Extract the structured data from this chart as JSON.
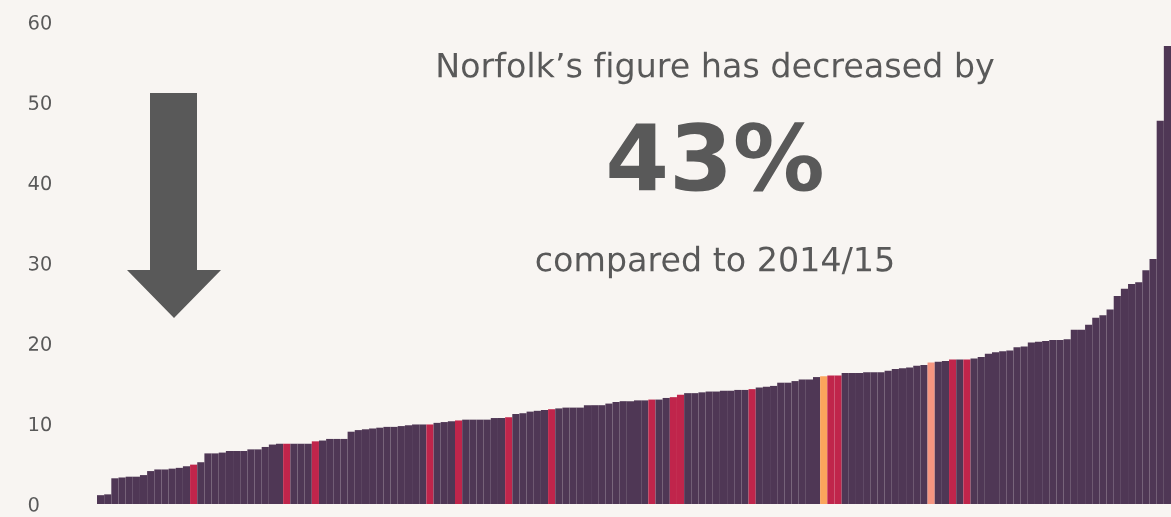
{
  "chart_data": {
    "type": "bar",
    "categories": [
      null,
      null,
      null,
      null,
      null,
      null,
      null,
      null,
      null,
      null,
      null,
      null,
      null,
      null,
      null,
      null,
      null,
      null,
      null,
      null,
      null,
      null,
      null,
      null,
      null,
      null,
      null,
      null,
      null,
      null,
      null,
      null,
      null,
      null,
      null,
      null,
      null,
      null,
      null,
      null,
      null,
      null,
      null,
      null,
      null,
      null,
      null,
      null,
      null,
      null,
      null,
      null,
      null,
      null,
      null,
      null,
      null,
      null,
      null,
      null,
      null,
      null,
      null,
      null,
      null,
      null,
      null,
      null,
      null,
      null,
      null,
      null,
      null,
      null,
      null,
      null,
      null,
      null,
      null,
      null,
      null,
      null,
      null,
      null,
      null,
      null,
      null,
      null,
      null,
      null,
      null,
      null,
      null,
      null,
      null,
      null,
      null,
      null,
      null,
      null,
      null,
      null,
      null,
      null,
      null,
      null,
      null,
      null,
      null,
      null,
      null,
      null,
      null,
      null,
      null,
      null,
      null,
      null,
      null,
      null,
      null,
      null,
      null,
      null,
      null,
      null,
      null,
      null,
      null,
      null,
      null,
      null,
      null,
      null,
      null,
      null,
      null,
      null,
      null,
      null,
      null,
      null,
      null,
      null,
      null,
      null,
      null,
      null,
      null,
      null
    ],
    "values": [
      1.1,
      1.2,
      3.2,
      3.3,
      3.4,
      3.4,
      3.6,
      4.1,
      4.3,
      4.3,
      4.4,
      4.5,
      4.7,
      4.9,
      5.2,
      6.3,
      6.3,
      6.4,
      6.6,
      6.6,
      6.6,
      6.8,
      6.8,
      7.1,
      7.4,
      7.5,
      7.5,
      7.5,
      7.5,
      7.5,
      7.8,
      7.9,
      8.1,
      8.1,
      8.1,
      9.0,
      9.2,
      9.3,
      9.4,
      9.5,
      9.6,
      9.6,
      9.7,
      9.8,
      9.9,
      9.9,
      9.9,
      10.1,
      10.2,
      10.3,
      10.4,
      10.5,
      10.5,
      10.5,
      10.5,
      10.7,
      10.7,
      10.8,
      11.2,
      11.3,
      11.5,
      11.6,
      11.7,
      11.8,
      11.9,
      12.0,
      12.0,
      12.0,
      12.3,
      12.3,
      12.3,
      12.5,
      12.7,
      12.8,
      12.8,
      12.9,
      12.9,
      13.0,
      13.0,
      13.2,
      13.3,
      13.6,
      13.8,
      13.8,
      13.9,
      14.0,
      14.0,
      14.1,
      14.1,
      14.2,
      14.2,
      14.3,
      14.5,
      14.6,
      14.7,
      15.1,
      15.1,
      15.3,
      15.5,
      15.5,
      15.8,
      15.9,
      16.0,
      16.0,
      16.3,
      16.3,
      16.3,
      16.4,
      16.4,
      16.4,
      16.6,
      16.8,
      16.9,
      17.0,
      17.2,
      17.3,
      17.6,
      17.7,
      17.8,
      18.0,
      18.0,
      18.0,
      18.1,
      18.3,
      18.7,
      18.9,
      19.0,
      19.1,
      19.5,
      19.6,
      20.1,
      20.2,
      20.3,
      20.4,
      20.4,
      20.5,
      21.7,
      21.7,
      22.3,
      23.2,
      23.5,
      24.2,
      25.9,
      26.8,
      27.4,
      27.6,
      29.1,
      30.5,
      47.7,
      57.0
    ],
    "colors": [
      "#4f3755",
      "#4f3755",
      "#4f3755",
      "#4f3755",
      "#4f3755",
      "#4f3755",
      "#4f3755",
      "#4f3755",
      "#4f3755",
      "#4f3755",
      "#4f3755",
      "#4f3755",
      "#4f3755",
      "#c0254b",
      "#4f3755",
      "#4f3755",
      "#4f3755",
      "#4f3755",
      "#4f3755",
      "#4f3755",
      "#4f3755",
      "#4f3755",
      "#4f3755",
      "#4f3755",
      "#4f3755",
      "#4f3755",
      "#c0254b",
      "#4f3755",
      "#4f3755",
      "#4f3755",
      "#c0254b",
      "#4f3755",
      "#4f3755",
      "#4f3755",
      "#4f3755",
      "#4f3755",
      "#4f3755",
      "#4f3755",
      "#4f3755",
      "#4f3755",
      "#4f3755",
      "#4f3755",
      "#4f3755",
      "#4f3755",
      "#4f3755",
      "#4f3755",
      "#c0254b",
      "#4f3755",
      "#4f3755",
      "#4f3755",
      "#c0254b",
      "#4f3755",
      "#4f3755",
      "#4f3755",
      "#4f3755",
      "#4f3755",
      "#4f3755",
      "#c0254b",
      "#4f3755",
      "#4f3755",
      "#4f3755",
      "#4f3755",
      "#4f3755",
      "#c0254b",
      "#4f3755",
      "#4f3755",
      "#4f3755",
      "#4f3755",
      "#4f3755",
      "#4f3755",
      "#4f3755",
      "#4f3755",
      "#4f3755",
      "#4f3755",
      "#4f3755",
      "#4f3755",
      "#4f3755",
      "#c0254b",
      "#4f3755",
      "#4f3755",
      "#c0254b",
      "#c0254b",
      "#4f3755",
      "#4f3755",
      "#4f3755",
      "#4f3755",
      "#4f3755",
      "#4f3755",
      "#4f3755",
      "#4f3755",
      "#4f3755",
      "#c0254b",
      "#4f3755",
      "#4f3755",
      "#4f3755",
      "#4f3755",
      "#4f3755",
      "#4f3755",
      "#4f3755",
      "#4f3755",
      "#4f3755",
      "#fba55c",
      "#c0254b",
      "#c0254b",
      "#4f3755",
      "#4f3755",
      "#4f3755",
      "#4f3755",
      "#4f3755",
      "#4f3755",
      "#4f3755",
      "#4f3755",
      "#4f3755",
      "#4f3755",
      "#4f3755",
      "#4f3755",
      "#f69580",
      "#4f3755",
      "#4f3755",
      "#c0254b",
      "#4f3755",
      "#c0254b",
      "#4f3755",
      "#4f3755",
      "#4f3755",
      "#4f3755",
      "#4f3755",
      "#4f3755",
      "#4f3755",
      "#4f3755",
      "#4f3755",
      "#4f3755",
      "#4f3755",
      "#4f3755",
      "#4f3755",
      "#4f3755",
      "#4f3755",
      "#4f3755",
      "#4f3755",
      "#4f3755",
      "#4f3755",
      "#4f3755",
      "#4f3755",
      "#4f3755",
      "#4f3755",
      "#4f3755",
      "#4f3755",
      "#4f3755",
      "#4f3755",
      "#4f3755"
    ],
    "ylim": [
      0,
      60
    ],
    "yticks": [
      0,
      10,
      20,
      30,
      40,
      50,
      60
    ],
    "tick_labels": "y",
    "grid": false,
    "legend": false,
    "annotations": [
      "Norfolk’s figure has decreased by",
      "43%",
      "compared to 2014/15"
    ]
  }
}
